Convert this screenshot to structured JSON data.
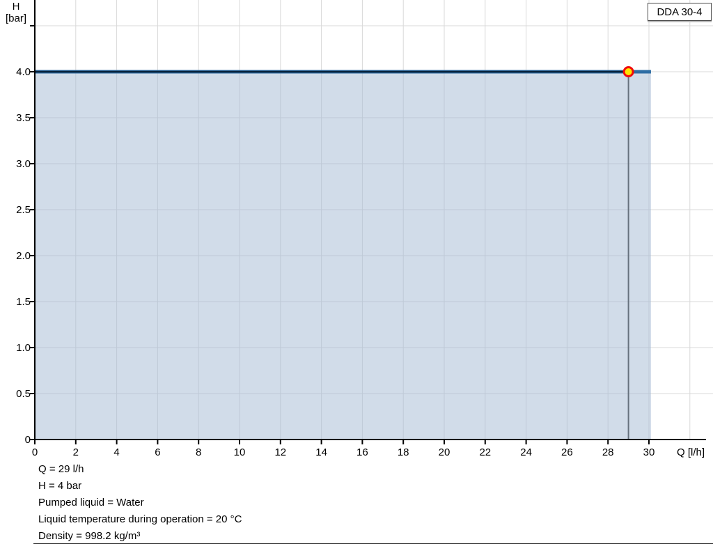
{
  "legend": {
    "label": "DDA 30-4"
  },
  "footer": {
    "lines": [
      "Q = 29 l/h",
      "H = 4 bar",
      "Pumped liquid = Water",
      "Liquid temperature during operation = 20 °C",
      "Density = 998.2 kg/m³"
    ]
  },
  "chart_data": {
    "type": "area",
    "title": "",
    "pump_model": "DDA 30-4",
    "xlabel": "Q [l/h]",
    "ylabel_lines": [
      "H",
      "[bar]"
    ],
    "xlim": [
      0,
      33.1
    ],
    "ylim": [
      0,
      4.78
    ],
    "grid": true,
    "legend_position": "top-right",
    "x_ticks": [
      0,
      2,
      4,
      6,
      8,
      10,
      12,
      14,
      16,
      18,
      20,
      22,
      24,
      26,
      28,
      30
    ],
    "x_grid_step": 2,
    "y_ticks": [
      0,
      0.5,
      1,
      1.5,
      2,
      2.5,
      3,
      3.5,
      4,
      4.5
    ],
    "y_tick_labels": [
      "0",
      "0.5",
      "1.0",
      "1.5",
      "2.0",
      "2.5",
      "3.0",
      "3.5",
      "4.0",
      ""
    ],
    "series": [
      {
        "name": "DDA 30-4",
        "x": [
          0,
          30.1
        ],
        "y": [
          4.0,
          4.0
        ],
        "filled": true
      }
    ],
    "operating_point": {
      "Q": 29,
      "H": 4
    },
    "colors": {
      "curve": "#2a6396",
      "curve_core": "#08233c",
      "curve_tip": "#2e6da4",
      "area_fill": "rgba(164,186,211,0.5)",
      "grid": "#d9d9d9",
      "axis": "#000000",
      "ref_line": "#66717d",
      "marker_fill": "#ffe600",
      "marker_stroke": "#f00d0d",
      "text": "#000000"
    }
  }
}
